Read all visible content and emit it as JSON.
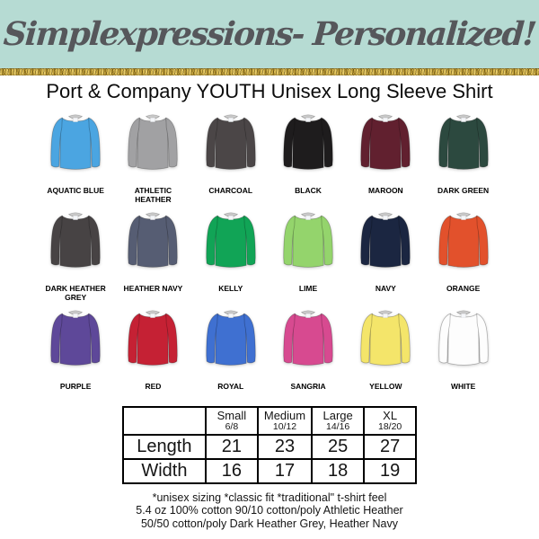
{
  "header": {
    "brand": "Simplexpressions- Personalized!"
  },
  "title": "Port & Company YOUTH Unisex Long Sleeve Shirt",
  "colors": {
    "banner_bg": "#b6dbd3",
    "banner_text": "#56575b",
    "glitter_gold": "#c3a23c"
  },
  "shirts": [
    {
      "label": "AQUATIC BLUE",
      "color": "#4ba5e1"
    },
    {
      "label": "ATHLETIC HEATHER",
      "color": "#a1a1a3"
    },
    {
      "label": "CHARCOAL",
      "color": "#4b4647"
    },
    {
      "label": "BLACK",
      "color": "#1e1c1d"
    },
    {
      "label": "MAROON",
      "color": "#61202f"
    },
    {
      "label": "DARK GREEN",
      "color": "#2c493f"
    },
    {
      "label": "DARK HEATHER GREY",
      "color": "#474344"
    },
    {
      "label": "HEATHER NAVY",
      "color": "#565d73"
    },
    {
      "label": "KELLY",
      "color": "#11a456"
    },
    {
      "label": "LIME",
      "color": "#94d46c"
    },
    {
      "label": "NAVY",
      "color": "#1b2641"
    },
    {
      "label": "ORANGE",
      "color": "#e2512c"
    },
    {
      "label": "PURPLE",
      "color": "#5e4899"
    },
    {
      "label": "RED",
      "color": "#c52134"
    },
    {
      "label": "ROYAL",
      "color": "#3f70d1"
    },
    {
      "label": "SANGRIA",
      "color": "#d74a90"
    },
    {
      "label": "YELLOW",
      "color": "#f4e56a"
    },
    {
      "label": "WHITE",
      "color": "#fdfdfd"
    }
  ],
  "size_table": {
    "columns": [
      {
        "size": "Small",
        "range": "6/8"
      },
      {
        "size": "Medium",
        "range": "10/12"
      },
      {
        "size": "Large",
        "range": "14/16"
      },
      {
        "size": "XL",
        "range": "18/20"
      }
    ],
    "rows": [
      {
        "label": "Length",
        "values": [
          "21",
          "23",
          "25",
          "27"
        ]
      },
      {
        "label": "Width",
        "values": [
          "16",
          "17",
          "18",
          "19"
        ]
      }
    ]
  },
  "footnotes": [
    "*unisex sizing *classic fit *traditional\" t-shirt feel",
    "5.4 oz 100% cotton 90/10 cotton/poly Athletic Heather",
    "50/50 cotton/poly Dark Heather Grey, Heather Navy"
  ]
}
